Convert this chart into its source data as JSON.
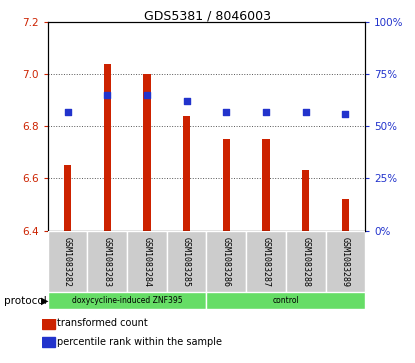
{
  "title": "GDS5381 / 8046003",
  "samples": [
    "GSM1083282",
    "GSM1083283",
    "GSM1083284",
    "GSM1083285",
    "GSM1083286",
    "GSM1083287",
    "GSM1083288",
    "GSM1083289"
  ],
  "transformed_counts": [
    6.65,
    7.04,
    7.0,
    6.84,
    6.75,
    6.75,
    6.63,
    6.52
  ],
  "percentile_ranks": [
    57,
    65,
    65,
    62,
    57,
    57,
    57,
    56
  ],
  "ylim_left": [
    6.4,
    7.2
  ],
  "ylim_right": [
    0,
    100
  ],
  "yticks_left": [
    6.4,
    6.6,
    6.8,
    7.0,
    7.2
  ],
  "yticks_right": [
    0,
    25,
    50,
    75,
    100
  ],
  "bar_color": "#cc2200",
  "dot_color": "#2233cc",
  "bar_bottom": 6.4,
  "group1_label": "doxycycline-induced ZNF395",
  "group2_label": "control",
  "group_color": "#66dd66",
  "protocol_label": "protocol",
  "bg_color": "#ffffff",
  "plot_bg": "#ffffff",
  "grid_color": "#555555",
  "tick_color_left": "#cc2200",
  "tick_color_right": "#2233cc",
  "sample_box_color": "#cccccc",
  "legend_items": [
    {
      "color": "#cc2200",
      "label": "transformed count"
    },
    {
      "color": "#2233cc",
      "label": "percentile rank within the sample"
    }
  ]
}
